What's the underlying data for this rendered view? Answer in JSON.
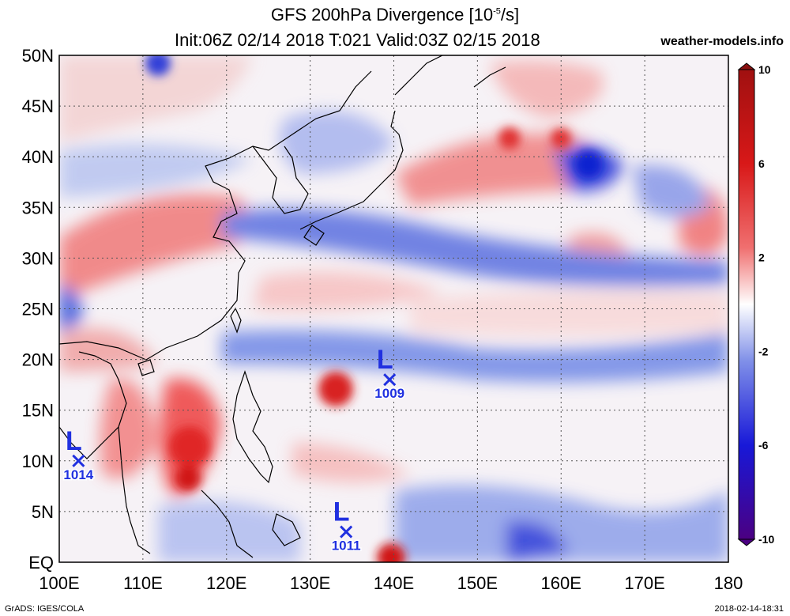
{
  "title": {
    "line1_prefix": "GFS 200hPa Divergence [10",
    "line1_exp": "-5",
    "line1_suffix": "/s]",
    "line2": "Init:06Z 02/14 2018 T:021 Valid:03Z 02/15 2018",
    "site": "weather-models.info"
  },
  "footer": {
    "left": "GrADS: IGES/COLA",
    "right": "2018-02-14-18:31"
  },
  "map": {
    "lat_labels": [
      "50N",
      "45N",
      "40N",
      "35N",
      "30N",
      "25N",
      "20N",
      "15N",
      "10N",
      "5N",
      "EQ"
    ],
    "lon_labels": [
      "100E",
      "110E",
      "120E",
      "130E",
      "140E",
      "150E",
      "160E",
      "170E",
      "180"
    ],
    "colorbar": {
      "labels": [
        "10",
        "6",
        "2",
        "-2",
        "-6",
        "-10"
      ],
      "colors": [
        "#4b0082",
        "#1010d0",
        "#4060e0",
        "#a0b0f0",
        "#ffffff",
        "#f0a0a0",
        "#e83030",
        "#c01010",
        "#a01010"
      ]
    },
    "lows": [
      {
        "label": "L",
        "pressure": "1014",
        "lon": 102.3,
        "lat": 10.0
      },
      {
        "label": "L",
        "pressure": "1009",
        "lon": 139.5,
        "lat": 18.0
      },
      {
        "label": "L",
        "pressure": "1011",
        "lon": 134.3,
        "lat": 3.0
      }
    ]
  }
}
